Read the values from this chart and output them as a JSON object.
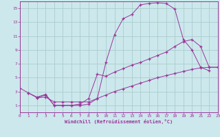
{
  "bg_color": "#cce8ec",
  "grid_color": "#aacccc",
  "line_color": "#993399",
  "xlabel": "Windchill (Refroidissement éolien,°C)",
  "line1_x": [
    0,
    1,
    2,
    3,
    4,
    5,
    6,
    7,
    8,
    9,
    10,
    11,
    12,
    13,
    14,
    15,
    16,
    17,
    18,
    19,
    20,
    21,
    22
  ],
  "line1_y": [
    3.5,
    2.8,
    2.2,
    2.6,
    1.0,
    1.0,
    1.0,
    1.0,
    1.2,
    2.0,
    7.2,
    11.2,
    13.5,
    14.1,
    15.5,
    15.7,
    15.8,
    15.7,
    14.9,
    10.5,
    9.0,
    6.5,
    6.0
  ],
  "line2_x": [
    1,
    2,
    3,
    4,
    5,
    6,
    7,
    8,
    9,
    10,
    11,
    12,
    13,
    14,
    15,
    16,
    17,
    18,
    19,
    20,
    21,
    22,
    23
  ],
  "line2_y": [
    2.8,
    2.1,
    2.2,
    1.5,
    1.5,
    1.5,
    1.5,
    1.5,
    2.0,
    2.5,
    3.0,
    3.4,
    3.8,
    4.2,
    4.6,
    5.0,
    5.3,
    5.6,
    5.9,
    6.2,
    6.4,
    6.5,
    6.5
  ],
  "line3_x": [
    2,
    3,
    4,
    5,
    6,
    7,
    8,
    9,
    10,
    11,
    12,
    13,
    14,
    15,
    16,
    17,
    18,
    19,
    20,
    21,
    22,
    23
  ],
  "line3_y": [
    2.1,
    2.5,
    1.0,
    1.0,
    1.0,
    1.2,
    2.0,
    5.5,
    5.2,
    5.8,
    6.3,
    6.8,
    7.2,
    7.7,
    8.2,
    8.7,
    9.5,
    10.2,
    10.5,
    9.5,
    6.5,
    6.5
  ],
  "xlim": [
    0,
    23
  ],
  "ylim": [
    0,
    16
  ],
  "xticks": [
    0,
    1,
    2,
    3,
    4,
    5,
    6,
    7,
    8,
    9,
    10,
    11,
    12,
    13,
    14,
    15,
    16,
    17,
    18,
    19,
    20,
    21,
    22,
    23
  ],
  "yticks": [
    1,
    3,
    5,
    7,
    9,
    11,
    13,
    15
  ],
  "tick_fontsize": 4.5,
  "label_fontsize": 5.0
}
